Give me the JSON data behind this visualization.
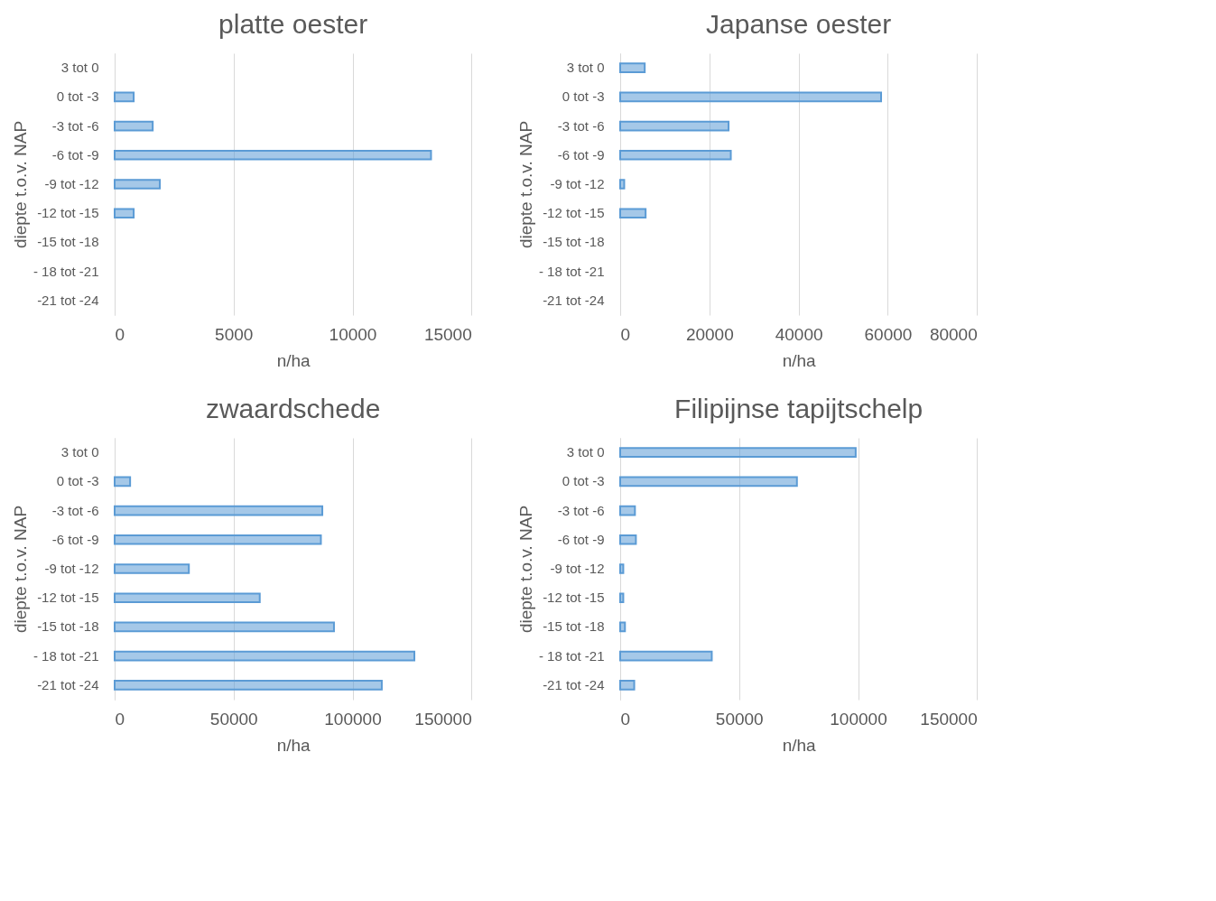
{
  "chart_data": [
    {
      "type": "bar",
      "orientation": "horizontal",
      "title": "platte oester",
      "xlabel": "n/ha",
      "ylabel": "diepte t.o.v. NAP",
      "categories": [
        "3 tot 0",
        "0 tot -3",
        "-3 tot -6",
        "-6 tot -9",
        "-9 tot -12",
        "-12 tot -15",
        "-15 tot -18",
        "- 18 tot -21",
        "-21 tot -24"
      ],
      "values": [
        null,
        800,
        1600,
        13300,
        1900,
        800,
        null,
        null,
        null
      ],
      "color": "#5b9bd5",
      "xlim": [
        0,
        15000
      ],
      "xticks": [
        0,
        5000,
        10000,
        15000
      ],
      "grid": "x"
    },
    {
      "type": "bar",
      "orientation": "horizontal",
      "title": "Japanse oester",
      "xlabel": "n/ha",
      "ylabel": "diepte t.o.v. NAP",
      "categories": [
        "3 tot 0",
        "0 tot -3",
        "-3 tot -6",
        "-6 tot -9",
        "-9 tot -12",
        "-12 tot -15",
        "-15 tot -18",
        "- 18 tot -21",
        "-21 tot -24"
      ],
      "values": [
        5500,
        58500,
        24300,
        24800,
        900,
        5700,
        null,
        null,
        null
      ],
      "color": "#5b9bd5",
      "xlim": [
        0,
        80000
      ],
      "xticks": [
        0,
        20000,
        40000,
        60000,
        80000
      ],
      "grid": "x"
    },
    {
      "type": "bar",
      "orientation": "horizontal",
      "title": "zwaardschede",
      "xlabel": "n/ha",
      "ylabel": "diepte t.o.v. NAP",
      "categories": [
        "3 tot 0",
        "0 tot -3",
        "-3 tot -6",
        "-6 tot -9",
        "-9 tot -12",
        "-12 tot -15",
        "-15 tot -18",
        "- 18 tot -21",
        "-21 tot -24"
      ],
      "values": [
        null,
        6500,
        87300,
        86700,
        31200,
        61000,
        92200,
        126000,
        112300
      ],
      "color": "#5b9bd5",
      "xlim": [
        0,
        150000
      ],
      "xticks": [
        0,
        50000,
        100000,
        150000
      ],
      "grid": "x"
    },
    {
      "type": "bar",
      "orientation": "horizontal",
      "title": "Filipijnse tapijtschelp",
      "xlabel": "n/ha",
      "ylabel": "diepte t.o.v. NAP",
      "categories": [
        "3 tot 0",
        "0 tot -3",
        "-3 tot -6",
        "-6 tot -9",
        "-9 tot -12",
        "-12 tot -15",
        "-15 tot -18",
        "- 18 tot -21",
        "-21 tot -24"
      ],
      "values": [
        99000,
        74300,
        6200,
        6600,
        1300,
        1300,
        2000,
        38500,
        5900
      ],
      "color": "#5b9bd5",
      "xlim": [
        0,
        150000
      ],
      "xticks": [
        0,
        50000,
        100000,
        150000
      ],
      "grid": "x"
    }
  ]
}
